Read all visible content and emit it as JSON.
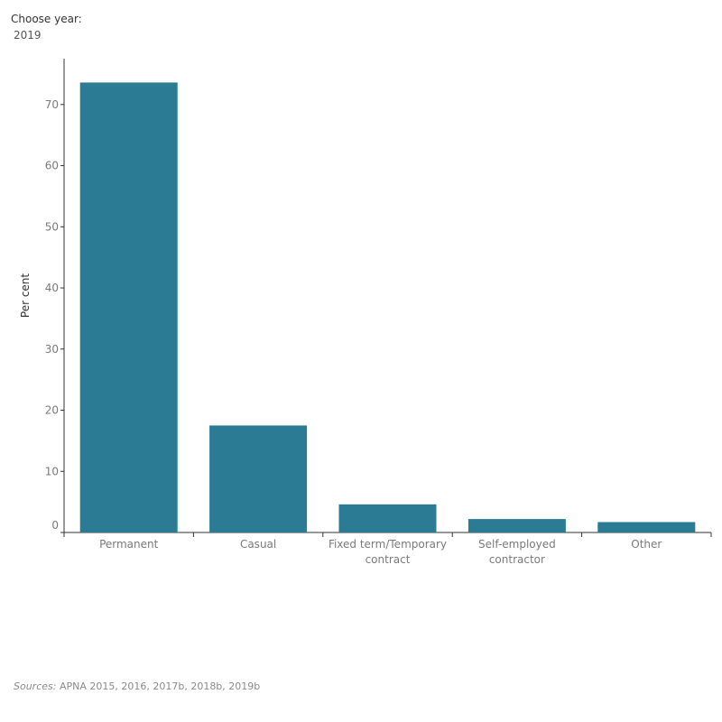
{
  "filter": {
    "label": "Choose year:",
    "selected": "2019"
  },
  "colors": {
    "bar": "#2a7b93",
    "axis": "#333333",
    "tick_text": "#7a7a7a",
    "ylabel_text": "#333333"
  },
  "chart_data": {
    "type": "bar",
    "categories": [
      [
        "Permanent"
      ],
      [
        "Casual"
      ],
      [
        "Fixed term/Temporary",
        "contract"
      ],
      [
        "Self-employed",
        "contractor"
      ],
      [
        "Other"
      ]
    ],
    "values": [
      73.6,
      17.5,
      4.6,
      2.2,
      1.7
    ],
    "title": "",
    "xlabel": "",
    "ylabel": "Per cent",
    "ylim": [
      0,
      77.5
    ],
    "yticks": [
      0,
      10,
      20,
      30,
      40,
      50,
      60,
      70
    ],
    "grid": false
  },
  "source": {
    "prefix": "Sources:",
    "text": " APNA 2015, 2016, 2017b, 2018b, 2019b"
  }
}
